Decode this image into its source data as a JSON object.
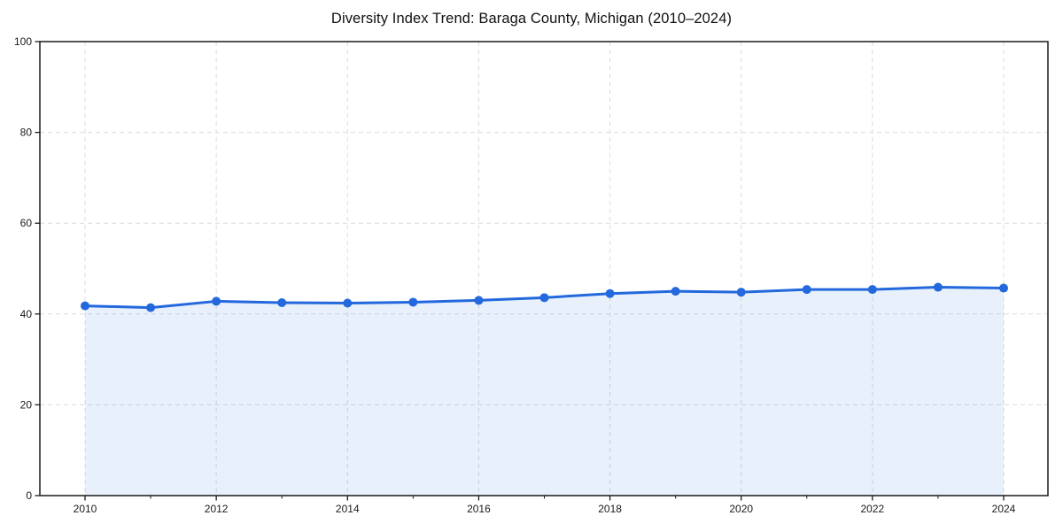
{
  "chart_data": {
    "type": "line",
    "title": "Diversity Index Trend: Baraga County, Michigan (2010–2024)",
    "x": [
      2010,
      2011,
      2012,
      2013,
      2014,
      2015,
      2016,
      2017,
      2018,
      2019,
      2020,
      2021,
      2022,
      2023,
      2024
    ],
    "series": [
      {
        "name": "Diversity Index",
        "values": [
          41.8,
          41.4,
          42.8,
          42.5,
          42.4,
          42.6,
          43.0,
          43.6,
          44.5,
          45.0,
          44.8,
          45.4,
          45.4,
          45.9,
          45.7
        ]
      }
    ],
    "xlabel": "",
    "ylabel": "",
    "ylim": [
      0,
      100
    ],
    "yticks": [
      0,
      20,
      40,
      60,
      80,
      100
    ],
    "xticks_labeled": [
      2010,
      2012,
      2014,
      2016,
      2018,
      2020,
      2022,
      2024
    ],
    "xticks_minor_every_year": true,
    "grid": true,
    "grid_style": "dashed",
    "legend_position": "none",
    "area_fill_to_zero": true,
    "marker": "circle",
    "colors": {
      "line": "#2368dd",
      "fill": "rgba(34,105,222,0.10)",
      "grid": "#dcdcdc",
      "spine": "#1a1a1a",
      "tick_label": "#1a1a1a",
      "title": "#111111",
      "background": "#ffffff"
    }
  }
}
